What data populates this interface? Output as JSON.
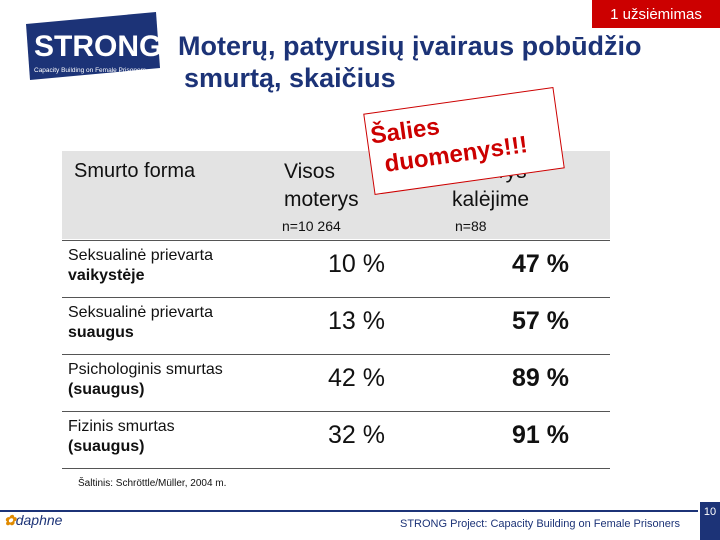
{
  "badge": "1 užsiėmimas",
  "logo": {
    "text": "STRONG",
    "tagline": "Capacity Building on Female Prisoners"
  },
  "title": {
    "line1": "Moterų, patyrusių įvairaus pobūdžio",
    "line2": "smurtą, skaičius"
  },
  "callout": {
    "line1": "Šalies",
    "line2": "duomenys!!!"
  },
  "header": {
    "form_label": "Smurto forma",
    "col1_line1": "Visos",
    "col1_line2": "moterys",
    "col1_n": "n=10 264",
    "col2_line1": "Moterys",
    "col2_line2": "kalėjime",
    "col2_n": "n=88"
  },
  "rows": [
    {
      "form1": "Seksualinė prievarta",
      "form2": "vaikystėje",
      "v1": "10 %",
      "v2": "47 %"
    },
    {
      "form1": "Seksualinė prievarta",
      "form2": "suaugus",
      "v1": "13 %",
      "v2": "57 %"
    },
    {
      "form1": "Psichologinis smurtas",
      "form2": "(suaugus)",
      "v1": "42 %",
      "v2": "89 %"
    },
    {
      "form1": "Fizinis smurtas",
      "form2": "(suaugus)",
      "v1": "32 %",
      "v2": "91 %"
    }
  ],
  "source": "Šaltinis: Schröttle/Müller, 2004 m.",
  "footer": {
    "project": "STRONG Project: Capacity Building on Female Prisoners",
    "page": "10",
    "partner_logo": "daphne"
  },
  "colors": {
    "accent_red": "#cc0000",
    "navy": "#1c3377"
  }
}
